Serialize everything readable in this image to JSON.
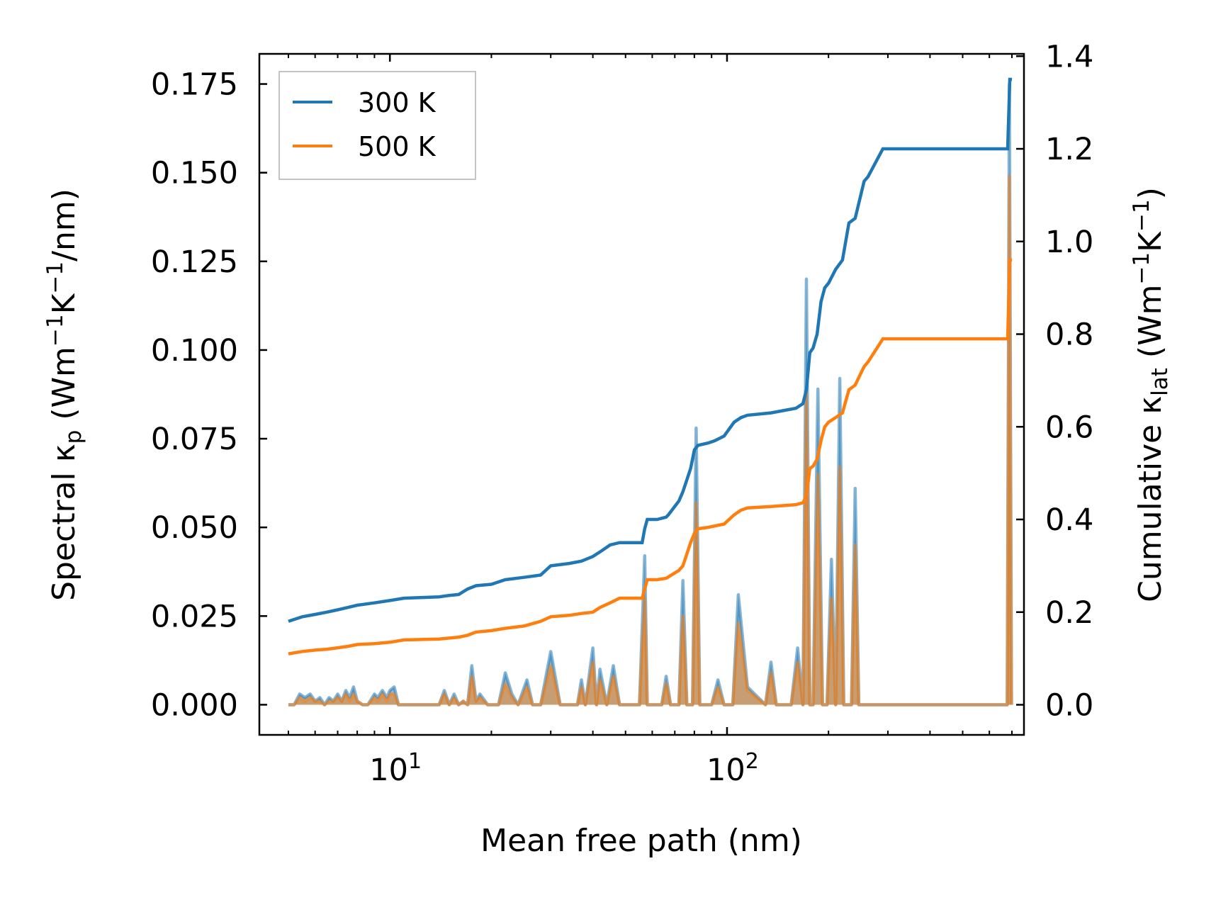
{
  "chart_data": {
    "type": "line",
    "xscale": "log",
    "xlim": [
      4.1,
      760
    ],
    "xlabel": "Mean free path (nm)",
    "x_ticks": [
      {
        "value": 10,
        "base": "10",
        "exp": "1"
      },
      {
        "value": 100,
        "base": "10",
        "exp": "2"
      }
    ],
    "left_axis": {
      "label_parts": {
        "pre": "Spectral κ",
        "sub": "p",
        "mid": " (Wm",
        "sup1": "−1",
        "mid2": "K",
        "sup2": "−1",
        "post": "/nm)"
      },
      "ylim": [
        -0.0085,
        0.1835
      ],
      "ticks": [
        0.0,
        0.025,
        0.05,
        0.075,
        0.1,
        0.125,
        0.15,
        0.175
      ],
      "tick_labels": [
        "0.000",
        "0.025",
        "0.050",
        "0.075",
        "0.100",
        "0.125",
        "0.150",
        "0.175"
      ]
    },
    "right_axis": {
      "label_parts": {
        "pre": "Cumulative κ",
        "sub": "lat",
        "mid": " (Wm",
        "sup1": "−1",
        "mid2": "K",
        "sup2": "−1",
        "post": ")"
      },
      "ylim": [
        -0.065,
        1.405
      ],
      "ticks": [
        0.0,
        0.2,
        0.4,
        0.6,
        0.8,
        1.0,
        1.2,
        1.4
      ],
      "tick_labels": [
        "0.0",
        "0.2",
        "0.4",
        "0.6",
        "0.8",
        "1.0",
        "1.2",
        "1.4"
      ]
    },
    "legend": {
      "position": "top-left",
      "entries": [
        "300 K",
        "500 K"
      ]
    },
    "series": [
      {
        "name": "300 K",
        "color": "#1f77b4",
        "axis": "right",
        "kind": "cumulative",
        "x": [
          5.0,
          5.5,
          6.0,
          6.5,
          7.0,
          7.5,
          8.0,
          9.0,
          10.0,
          11.0,
          14.0,
          15.0,
          16.0,
          17.0,
          18.0,
          20.0,
          22.0,
          25.0,
          28.0,
          30.0,
          34.0,
          37.0,
          40.0,
          42.0,
          45.0,
          48.0,
          56.0,
          57.0,
          58.0,
          62.0,
          66.0,
          67.0,
          72.0,
          74.0,
          78.0,
          80.0,
          82.0,
          88.0,
          92.0,
          98.0,
          105.0,
          110.0,
          115.0,
          135.0,
          160.0,
          168.0,
          172.0,
          176.0,
          180.0,
          185.0,
          190.0,
          195.0,
          200.0,
          210.0,
          220.0,
          230.0,
          240.0,
          255.0,
          262.0,
          290.0,
          300.0,
          680.0,
          690.0,
          700.0
        ],
        "values": [
          0.18,
          0.19,
          0.195,
          0.2,
          0.205,
          0.21,
          0.215,
          0.22,
          0.225,
          0.23,
          0.233,
          0.236,
          0.238,
          0.25,
          0.257,
          0.26,
          0.27,
          0.275,
          0.28,
          0.3,
          0.305,
          0.31,
          0.32,
          0.33,
          0.345,
          0.35,
          0.35,
          0.38,
          0.4,
          0.4,
          0.405,
          0.41,
          0.44,
          0.46,
          0.51,
          0.55,
          0.56,
          0.565,
          0.57,
          0.58,
          0.61,
          0.62,
          0.625,
          0.63,
          0.64,
          0.65,
          0.68,
          0.76,
          0.77,
          0.8,
          0.87,
          0.9,
          0.91,
          0.94,
          0.96,
          1.04,
          1.05,
          1.13,
          1.14,
          1.2,
          1.2,
          1.2,
          1.35,
          1.35
        ]
      },
      {
        "name": "500 K",
        "color": "#ff7f0e",
        "axis": "right",
        "kind": "cumulative",
        "x": [
          5.0,
          5.5,
          6.0,
          6.5,
          7.0,
          7.5,
          8.0,
          9.0,
          10.0,
          11.0,
          14.0,
          15.0,
          16.0,
          17.0,
          18.0,
          20.0,
          22.0,
          25.0,
          28.0,
          30.0,
          34.0,
          37.0,
          40.0,
          42.0,
          45.0,
          48.0,
          56.0,
          57.0,
          58.0,
          62.0,
          66.0,
          67.0,
          72.0,
          74.0,
          78.0,
          80.0,
          82.0,
          88.0,
          92.0,
          98.0,
          105.0,
          110.0,
          115.0,
          135.0,
          160.0,
          168.0,
          172.0,
          176.0,
          180.0,
          185.0,
          190.0,
          195.0,
          200.0,
          210.0,
          220.0,
          230.0,
          240.0,
          255.0,
          262.0,
          290.0,
          300.0,
          680.0,
          690.0,
          700.0
        ],
        "values": [
          0.11,
          0.115,
          0.118,
          0.12,
          0.123,
          0.126,
          0.13,
          0.132,
          0.135,
          0.14,
          0.142,
          0.144,
          0.146,
          0.15,
          0.157,
          0.16,
          0.165,
          0.17,
          0.18,
          0.19,
          0.193,
          0.197,
          0.2,
          0.21,
          0.22,
          0.23,
          0.23,
          0.25,
          0.27,
          0.27,
          0.273,
          0.276,
          0.29,
          0.3,
          0.35,
          0.37,
          0.38,
          0.383,
          0.386,
          0.39,
          0.41,
          0.42,
          0.425,
          0.428,
          0.432,
          0.436,
          0.45,
          0.51,
          0.515,
          0.53,
          0.57,
          0.6,
          0.61,
          0.62,
          0.63,
          0.68,
          0.69,
          0.73,
          0.74,
          0.79,
          0.79,
          0.79,
          0.96,
          0.96
        ]
      },
      {
        "name": "300 K spectral",
        "color": "#1f77b4",
        "axis": "left",
        "kind": "spectral",
        "x": [
          5.0,
          5.2,
          5.4,
          5.6,
          5.8,
          6.0,
          6.2,
          6.4,
          6.6,
          6.8,
          7.0,
          7.2,
          7.4,
          7.6,
          7.8,
          8.0,
          8.3,
          8.6,
          9.0,
          9.2,
          9.5,
          9.8,
          10.0,
          10.3,
          10.6,
          11.0,
          14.0,
          14.5,
          15.0,
          15.5,
          16.0,
          16.5,
          17.0,
          17.5,
          18.0,
          18.5,
          19.5,
          21.0,
          22.0,
          23.0,
          24.0,
          25.5,
          26.5,
          28.0,
          30.0,
          32.0,
          36.0,
          37.0,
          38.0,
          40.0,
          41.0,
          42.0,
          44.0,
          46.0,
          48.0,
          55.0,
          57.0,
          58.0,
          60.0,
          64.0,
          66.0,
          68.0,
          72.0,
          74.0,
          76.0,
          79.0,
          81.0,
          83.0,
          90.0,
          94.0,
          98.0,
          104.0,
          108.0,
          115.0,
          130.0,
          135.0,
          140.0,
          155.0,
          162.0,
          168.0,
          172.0,
          176.0,
          180.0,
          186.0,
          192.0,
          198.0,
          204.0,
          210.0,
          216.0,
          222.0,
          228.0,
          234.0,
          240.0,
          246.0,
          252.0,
          258.0,
          264.0,
          282.0,
          290.0,
          300.0,
          660.0,
          678.0,
          688.0,
          698.0
        ],
        "values": [
          0.0,
          0.0,
          0.003,
          0.002,
          0.003,
          0.001,
          0.002,
          0.0,
          0.002,
          0.001,
          0.003,
          0.001,
          0.004,
          0.002,
          0.005,
          0.001,
          0.0,
          0.0,
          0.003,
          0.002,
          0.004,
          0.002,
          0.004,
          0.005,
          0.0,
          0.0,
          0.0,
          0.004,
          0.0,
          0.003,
          0.0,
          0.001,
          0.0,
          0.011,
          0.001,
          0.003,
          0.0,
          0.0,
          0.009,
          0.003,
          0.0,
          0.007,
          0.0,
          0.0,
          0.015,
          0.0,
          0.0,
          0.007,
          0.0,
          0.016,
          0.0,
          0.01,
          0.0,
          0.011,
          0.0,
          0.0,
          0.042,
          0.0,
          0.0,
          0.0,
          0.008,
          0.0,
          0.0,
          0.035,
          0.0,
          0.0,
          0.078,
          0.0,
          0.0,
          0.007,
          0.0,
          0.0,
          0.031,
          0.005,
          0.0,
          0.012,
          0.0,
          0.0,
          0.016,
          0.0,
          0.12,
          0.0,
          0.0,
          0.089,
          0.0,
          0.0,
          0.041,
          0.0,
          0.092,
          0.0,
          0.0,
          0.0,
          0.061,
          0.0,
          0.0,
          0.0,
          0.0,
          0.0,
          0.0,
          0.0,
          0.0,
          0.0,
          0.175,
          0.0
        ]
      },
      {
        "name": "500 K spectral",
        "color": "#ff7f0e",
        "axis": "left",
        "kind": "spectral",
        "x": [
          5.0,
          5.2,
          5.4,
          5.6,
          5.8,
          6.0,
          6.2,
          6.4,
          6.6,
          6.8,
          7.0,
          7.2,
          7.4,
          7.6,
          7.8,
          8.0,
          8.3,
          8.6,
          9.0,
          9.2,
          9.5,
          9.8,
          10.0,
          10.3,
          10.6,
          11.0,
          14.0,
          14.5,
          15.0,
          15.5,
          16.0,
          16.5,
          17.0,
          17.5,
          18.0,
          18.5,
          19.5,
          21.0,
          22.0,
          23.0,
          24.0,
          25.5,
          26.5,
          28.0,
          30.0,
          32.0,
          36.0,
          37.0,
          38.0,
          40.0,
          41.0,
          42.0,
          44.0,
          46.0,
          48.0,
          55.0,
          57.0,
          58.0,
          60.0,
          64.0,
          66.0,
          68.0,
          72.0,
          74.0,
          76.0,
          79.0,
          81.0,
          83.0,
          90.0,
          94.0,
          98.0,
          104.0,
          108.0,
          115.0,
          130.0,
          135.0,
          140.0,
          155.0,
          162.0,
          168.0,
          172.0,
          176.0,
          180.0,
          186.0,
          192.0,
          198.0,
          204.0,
          210.0,
          216.0,
          222.0,
          228.0,
          234.0,
          240.0,
          246.0,
          252.0,
          258.0,
          264.0,
          282.0,
          290.0,
          300.0,
          660.0,
          678.0,
          688.0,
          698.0
        ],
        "values": [
          0.0,
          0.0,
          0.002,
          0.001,
          0.002,
          0.001,
          0.001,
          0.0,
          0.001,
          0.001,
          0.002,
          0.001,
          0.003,
          0.001,
          0.003,
          0.001,
          0.0,
          0.0,
          0.002,
          0.001,
          0.003,
          0.001,
          0.003,
          0.003,
          0.0,
          0.0,
          0.0,
          0.003,
          0.0,
          0.002,
          0.0,
          0.001,
          0.0,
          0.008,
          0.001,
          0.002,
          0.0,
          0.0,
          0.006,
          0.002,
          0.0,
          0.005,
          0.0,
          0.0,
          0.011,
          0.0,
          0.0,
          0.005,
          0.0,
          0.012,
          0.0,
          0.007,
          0.0,
          0.008,
          0.0,
          0.0,
          0.03,
          0.0,
          0.0,
          0.0,
          0.006,
          0.0,
          0.0,
          0.025,
          0.0,
          0.0,
          0.057,
          0.0,
          0.0,
          0.005,
          0.0,
          0.0,
          0.023,
          0.004,
          0.0,
          0.009,
          0.0,
          0.0,
          0.012,
          0.0,
          0.088,
          0.0,
          0.0,
          0.065,
          0.0,
          0.0,
          0.03,
          0.0,
          0.067,
          0.0,
          0.0,
          0.0,
          0.045,
          0.0,
          0.0,
          0.0,
          0.0,
          0.0,
          0.0,
          0.0,
          0.0,
          0.0,
          0.149,
          0.0
        ]
      }
    ]
  }
}
